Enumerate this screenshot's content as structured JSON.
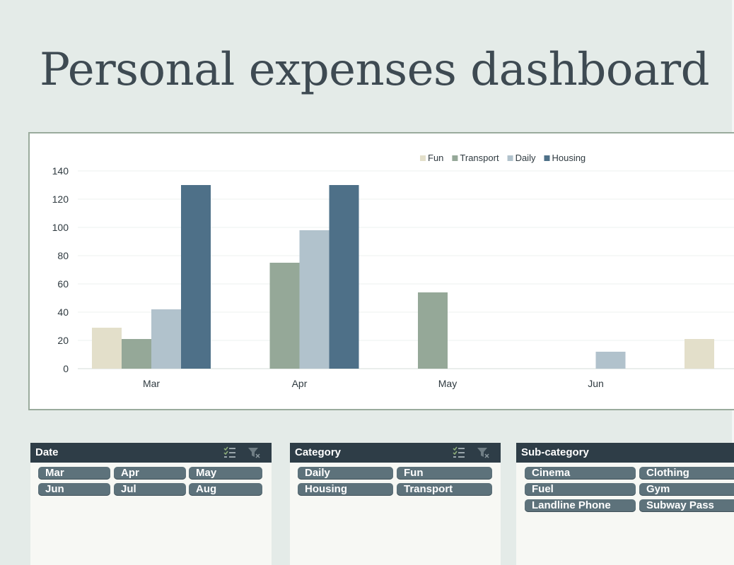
{
  "page": {
    "title": "Personal expenses dashboard"
  },
  "chart_data": {
    "type": "bar",
    "categories": [
      "Mar",
      "Apr",
      "May",
      "Jun",
      ""
    ],
    "series": [
      {
        "name": "Fun",
        "color": "#e3dfca",
        "values": [
          29,
          0,
          0,
          0,
          21
        ]
      },
      {
        "name": "Transport",
        "color": "#95a898",
        "values": [
          21,
          75,
          54,
          0,
          0
        ]
      },
      {
        "name": "Daily",
        "color": "#b1c2cc",
        "values": [
          42,
          98,
          0,
          12,
          0
        ]
      },
      {
        "name": "Housing",
        "color": "#4e7088",
        "values": [
          130,
          130,
          0,
          0,
          0
        ]
      }
    ],
    "yticks": [
      0,
      20,
      40,
      60,
      80,
      100,
      120,
      140
    ],
    "ylim": [
      0,
      140
    ],
    "grid": true,
    "legend_position": "top-right"
  },
  "slicers": {
    "date": {
      "header": "Date",
      "has_filter_icons": true,
      "items": [
        "Mar",
        "Apr",
        "May",
        "Jun",
        "Jul",
        "Aug"
      ]
    },
    "category": {
      "header": "Category",
      "has_filter_icons": true,
      "items": [
        "Daily",
        "Fun",
        "Housing",
        "Transport"
      ]
    },
    "subcategory": {
      "header": "Sub-category",
      "has_filter_icons": false,
      "items": [
        "Cinema",
        "Clothing",
        "Fuel",
        "Gym",
        "Landline Phone",
        "Subway Pass"
      ]
    }
  },
  "icons": {
    "multi_select": "multi-select-icon",
    "clear_filter": "clear-filter-icon"
  }
}
